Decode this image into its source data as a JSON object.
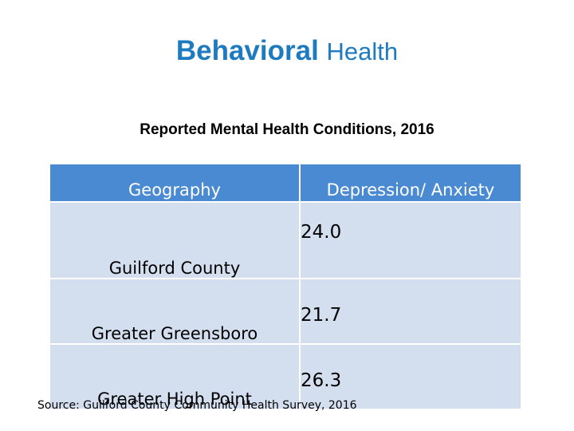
{
  "title": {
    "bold": "Behavioral",
    "rest": "Health"
  },
  "subtitle": "Reported Mental Health Conditions, 2016",
  "table": {
    "headers": [
      "Geography",
      "Depression/ Anxiety"
    ],
    "rows": [
      {
        "geography": "Guilford County",
        "value": "24.0"
      },
      {
        "geography": "Greater Greensboro",
        "value": "21.7"
      },
      {
        "geography": "Greater High Point",
        "value": "26.3"
      }
    ]
  },
  "source": "Source: Guilford County Community Health Survey, 2016",
  "colors": {
    "title": "#1f7bbf",
    "header_bg": "#4a8ad2",
    "cell_bg": "#d3deef"
  }
}
